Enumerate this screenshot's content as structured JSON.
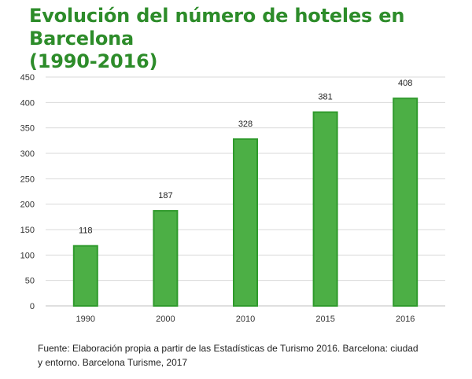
{
  "chart_data": {
    "type": "bar",
    "title": "Evolución del número de hoteles en Barcelona",
    "subtitle": "(1990-2016)",
    "xlabel": "",
    "ylabel": "",
    "categories": [
      "1990",
      "2000",
      "2010",
      "2015",
      "2016"
    ],
    "values": [
      118,
      187,
      328,
      381,
      408
    ],
    "data_labels": [
      "118",
      "187",
      "328",
      "381",
      "408"
    ],
    "ylim": [
      0,
      450
    ],
    "y_ticks": [
      0,
      50,
      100,
      150,
      200,
      250,
      300,
      350,
      400,
      450
    ],
    "grid": true,
    "legend": "none",
    "colors": {
      "bar_fill": "#4caf45",
      "bar_stroke": "#2f9a2c",
      "title": "#2d8c2a",
      "grid": "#d9d9d9"
    }
  },
  "source": {
    "line1": "Fuente: Elaboración propia a partir de las Estadísticas de Turismo 2016. Barcelona: ciudad",
    "line2": "y entorno. Barcelona Turisme, 2017"
  }
}
